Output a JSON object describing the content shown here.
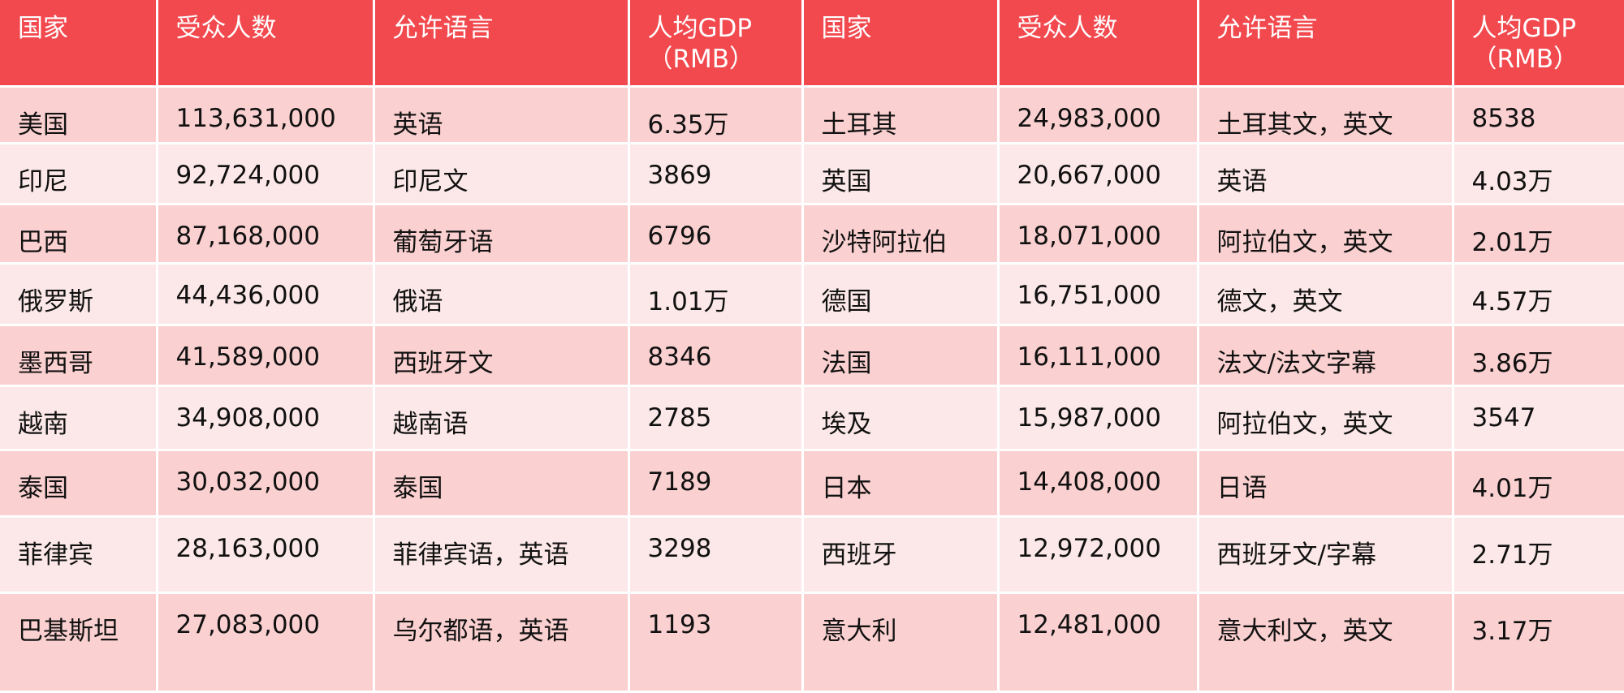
{
  "header": {
    "country_1": "国家",
    "audience_1": "受众人数",
    "language_1": "允许语言",
    "gdp_1_line1": "人均GDP",
    "gdp_1_line2": "（RMB）",
    "country_2": "国家",
    "audience_2": "受众人数",
    "language_2": "允许语言",
    "gdp_2_line1": "人均GDP",
    "gdp_2_line2": "（RMB）"
  },
  "rows": [
    {
      "country_1": "美国",
      "audience_1": "113,631,000",
      "language_1": "英语",
      "gdp_1": "6.35万",
      "country_2": "土耳其",
      "audience_2": "24,983,000",
      "language_2": "土耳其文，英文",
      "gdp_2": "8538"
    },
    {
      "country_1": "印尼",
      "audience_1": "92,724,000",
      "language_1": "印尼文",
      "gdp_1": "3869",
      "country_2": "英国",
      "audience_2": "20,667,000",
      "language_2": "英语",
      "gdp_2": "4.03万"
    },
    {
      "country_1": "巴西",
      "audience_1": "87,168,000",
      "language_1": "葡萄牙语",
      "gdp_1": "6796",
      "country_2": "沙特阿拉伯",
      "audience_2": "18,071,000",
      "language_2": "阿拉伯文，英文",
      "gdp_2": "2.01万"
    },
    {
      "country_1": "俄罗斯",
      "audience_1": "44,436,000",
      "language_1": "俄语",
      "gdp_1": "1.01万",
      "country_2": "德国",
      "audience_2": "16,751,000",
      "language_2": "德文，英文",
      "gdp_2": "4.57万"
    },
    {
      "country_1": "墨西哥",
      "audience_1": "41,589,000",
      "language_1": "西班牙文",
      "gdp_1": "8346",
      "country_2": "法国",
      "audience_2": "16,111,000",
      "language_2": "法文/法文字幕",
      "gdp_2": "3.86万"
    },
    {
      "country_1": "越南",
      "audience_1": "34,908,000",
      "language_1": "越南语",
      "gdp_1": "2785",
      "country_2": "埃及",
      "audience_2": "15,987,000",
      "language_2": "阿拉伯文，英文",
      "gdp_2": "3547"
    },
    {
      "country_1": "泰国",
      "audience_1": "30,032,000",
      "language_1": "泰国",
      "gdp_1": "7189",
      "country_2": "日本",
      "audience_2": "14,408,000",
      "language_2": "日语",
      "gdp_2": "4.01万"
    },
    {
      "country_1": "菲律宾",
      "audience_1": "28,163,000",
      "language_1": "菲律宾语，英语",
      "gdp_1": "3298",
      "country_2": "西班牙",
      "audience_2": "12,972,000",
      "language_2": "西班牙文/字幕",
      "gdp_2": "2.71万"
    },
    {
      "country_1": "巴基斯坦",
      "audience_1": "27,083,000",
      "language_1": "乌尔都语，英语",
      "gdp_1": "1193",
      "country_2": "意大利",
      "audience_2": "12,481,000",
      "language_2": "意大利文，英文",
      "gdp_2": "3.17万"
    }
  ]
}
